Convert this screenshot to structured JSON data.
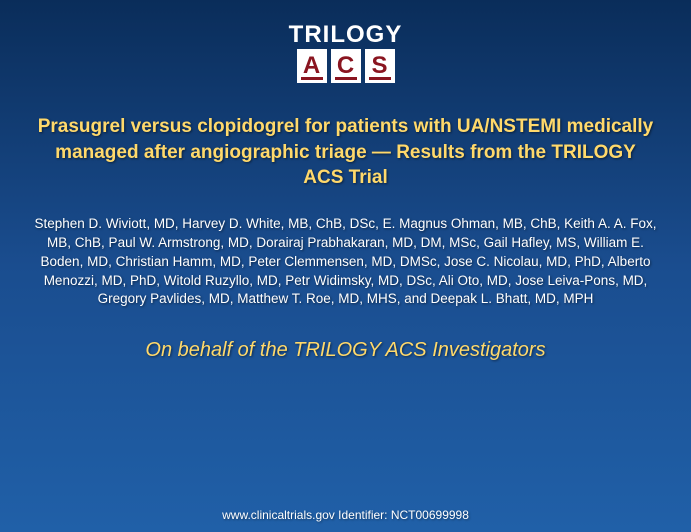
{
  "logo": {
    "top_text": "TRILOGY",
    "letters": [
      "A",
      "C",
      "S"
    ],
    "box_bg": "#ffffff",
    "box_fg": "#8a1520"
  },
  "title": {
    "text": "Prasugrel versus clopidogrel for patients with UA/NSTEMI medically managed after angiographic triage — Results from the TRILOGY ACS Trial",
    "color": "#ffd96b",
    "fontsize": 19
  },
  "authors": {
    "text": "Stephen D. Wiviott, MD, Harvey D. White, MB, ChB, DSc, E. Magnus Ohman, MB, ChB, Keith A. A. Fox, MB, ChB, Paul W. Armstrong, MD, Dorairaj Prabhakaran, MD, DM, MSc, Gail Hafley, MS, William E. Boden, MD, Christian Hamm, MD, Peter Clemmensen, MD, DMSc, Jose C. Nicolau, MD, PhD, Alberto Menozzi, MD, PhD, Witold Ruzyllo, MD, Petr Widimsky, MD, DSc, Ali Oto, MD, Jose Leiva-Pons, MD, Gregory Pavlides, MD, Matthew T. Roe, MD, MHS, and Deepak L. Bhatt, MD, MPH",
    "color": "#ffffff",
    "fontsize": 13.5
  },
  "behalf": {
    "text": "On behalf of the TRILOGY ACS Investigators",
    "color": "#ffd96b",
    "fontsize": 20
  },
  "footer": {
    "text": "www.clinicaltrials.gov Identifier: NCT00699998",
    "color": "#ffffff",
    "fontsize": 12
  },
  "background": {
    "gradient_top": "#0a2d5a",
    "gradient_mid": "#1a4d8f",
    "gradient_bottom": "#2060a8"
  }
}
